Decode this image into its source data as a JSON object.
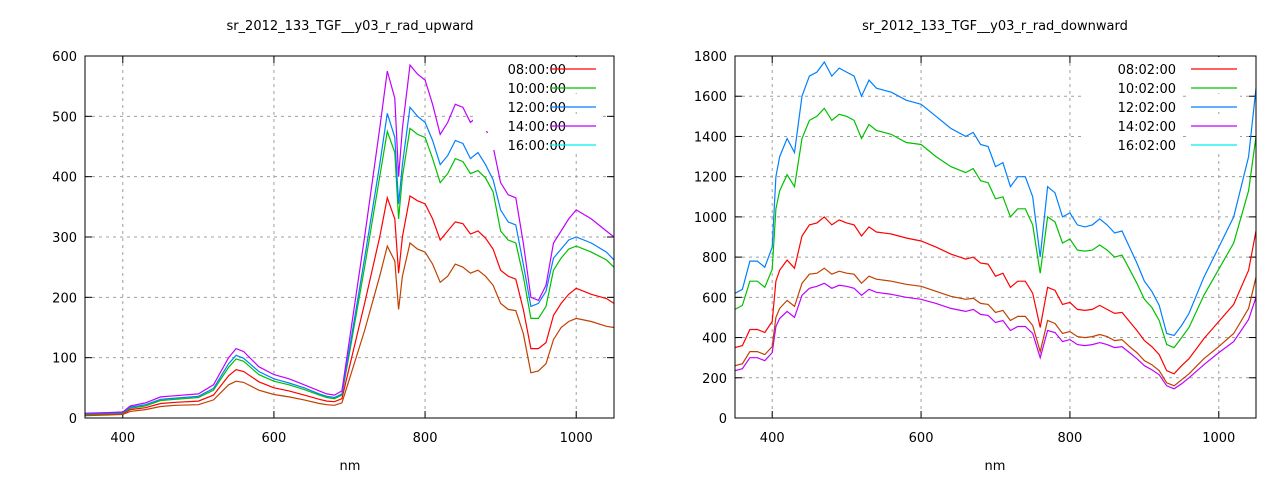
{
  "chart_data": [
    {
      "type": "line",
      "title": "sr_2012_133_TGF__y03_r_rad_upward",
      "xlabel": "nm",
      "ylabel": "",
      "xlim": [
        350,
        1050
      ],
      "ylim": [
        0,
        600
      ],
      "xticks": [
        400,
        600,
        800,
        1000
      ],
      "yticks": [
        0,
        100,
        200,
        300,
        400,
        500,
        600
      ],
      "grid": true,
      "legend_position": "top-right",
      "x": [
        350,
        380,
        400,
        410,
        430,
        450,
        470,
        500,
        520,
        540,
        550,
        560,
        580,
        600,
        620,
        640,
        660,
        670,
        680,
        690,
        700,
        720,
        740,
        750,
        760,
        765,
        770,
        780,
        790,
        800,
        810,
        820,
        830,
        840,
        850,
        860,
        870,
        880,
        890,
        900,
        910,
        920,
        930,
        940,
        950,
        960,
        970,
        980,
        990,
        1000,
        1020,
        1040,
        1050
      ],
      "series": [
        {
          "name": "08:00:00",
          "color": "#ff0000",
          "legend_color": "#ff0000",
          "values": [
            5,
            6,
            7,
            14,
            17,
            24,
            26,
            28,
            38,
            70,
            80,
            77,
            60,
            50,
            45,
            38,
            31,
            28,
            27,
            32,
            85,
            190,
            300,
            365,
            330,
            240,
            300,
            368,
            360,
            355,
            330,
            295,
            310,
            325,
            322,
            305,
            310,
            298,
            280,
            245,
            235,
            230,
            180,
            115,
            115,
            125,
            170,
            190,
            205,
            215,
            205,
            198,
            190
          ]
        },
        {
          "name": "10:00:00",
          "color": "#00c000",
          "legend_color": "#00c000",
          "values": [
            6,
            7,
            8,
            16,
            20,
            29,
            31,
            34,
            46,
            84,
            98,
            94,
            72,
            61,
            55,
            47,
            38,
            34,
            32,
            38,
            108,
            250,
            400,
            475,
            440,
            330,
            400,
            480,
            470,
            465,
            430,
            390,
            405,
            430,
            425,
            405,
            410,
            398,
            375,
            310,
            295,
            290,
            235,
            165,
            165,
            185,
            245,
            265,
            280,
            285,
            275,
            262,
            250
          ]
        },
        {
          "name": "12:00:00",
          "color": "#0080ff",
          "legend_color": "#0080ff",
          "values": [
            7,
            8,
            9,
            18,
            22,
            31,
            33,
            36,
            49,
            90,
            104,
            99,
            77,
            65,
            58,
            50,
            40,
            36,
            34,
            40,
            115,
            265,
            420,
            505,
            465,
            355,
            420,
            515,
            500,
            490,
            460,
            420,
            435,
            460,
            455,
            430,
            440,
            420,
            395,
            345,
            325,
            320,
            255,
            185,
            190,
            210,
            265,
            280,
            295,
            300,
            290,
            275,
            262
          ]
        },
        {
          "name": "14:00:00",
          "color": "#c000ff",
          "legend_color": "#c000ff",
          "values": [
            8,
            9,
            10,
            20,
            25,
            35,
            37,
            40,
            55,
            100,
            115,
            110,
            85,
            72,
            65,
            55,
            45,
            40,
            38,
            45,
            130,
            300,
            480,
            575,
            530,
            400,
            480,
            585,
            570,
            560,
            520,
            470,
            490,
            520,
            515,
            490,
            500,
            480,
            450,
            390,
            370,
            365,
            290,
            200,
            195,
            220,
            290,
            310,
            330,
            345,
            330,
            310,
            300
          ]
        },
        {
          "name": "16:00:00",
          "color": "#c04000",
          "legend_color": "#00eeee",
          "values": [
            4,
            5,
            6,
            11,
            14,
            19,
            21,
            22,
            30,
            55,
            61,
            59,
            46,
            39,
            35,
            30,
            24,
            22,
            21,
            25,
            65,
            145,
            235,
            285,
            260,
            180,
            235,
            290,
            280,
            275,
            255,
            225,
            235,
            255,
            250,
            240,
            245,
            235,
            220,
            190,
            180,
            178,
            140,
            75,
            78,
            90,
            130,
            150,
            160,
            165,
            160,
            152,
            150
          ]
        }
      ]
    },
    {
      "type": "line",
      "title": "sr_2012_133_TGF__y03_r_rad_downward",
      "xlabel": "nm",
      "ylabel": "",
      "xlim": [
        350,
        1050
      ],
      "ylim": [
        0,
        1800
      ],
      "xticks": [
        400,
        600,
        800,
        1000
      ],
      "yticks": [
        0,
        200,
        400,
        600,
        800,
        1000,
        1200,
        1400,
        1600,
        1800
      ],
      "grid": true,
      "legend_position": "top-right",
      "x": [
        350,
        360,
        370,
        380,
        390,
        400,
        405,
        410,
        420,
        430,
        440,
        450,
        460,
        470,
        480,
        490,
        500,
        510,
        520,
        530,
        540,
        560,
        580,
        600,
        620,
        640,
        660,
        670,
        680,
        690,
        700,
        710,
        720,
        730,
        740,
        750,
        760,
        770,
        780,
        790,
        800,
        810,
        820,
        830,
        840,
        850,
        860,
        870,
        880,
        890,
        900,
        910,
        920,
        930,
        940,
        950,
        960,
        980,
        1000,
        1020,
        1040,
        1050
      ],
      "series": [
        {
          "name": "08:02:00",
          "color": "#ff0000",
          "legend_color": "#ff0000",
          "values": [
            350,
            360,
            440,
            440,
            425,
            480,
            680,
            735,
            785,
            745,
            905,
            960,
            970,
            1000,
            960,
            985,
            970,
            960,
            905,
            950,
            925,
            915,
            895,
            880,
            850,
            815,
            790,
            800,
            770,
            765,
            705,
            720,
            650,
            680,
            680,
            620,
            450,
            650,
            635,
            565,
            575,
            540,
            535,
            540,
            560,
            540,
            520,
            525,
            480,
            435,
            385,
            355,
            315,
            235,
            220,
            260,
            295,
            395,
            480,
            565,
            735,
            930
          ]
        },
        {
          "name": "10:02:00",
          "color": "#00c000",
          "legend_color": "#00c000",
          "values": [
            540,
            560,
            680,
            680,
            650,
            740,
            1040,
            1130,
            1210,
            1150,
            1390,
            1480,
            1500,
            1540,
            1480,
            1510,
            1500,
            1480,
            1390,
            1460,
            1430,
            1410,
            1370,
            1360,
            1300,
            1250,
            1220,
            1240,
            1180,
            1170,
            1090,
            1100,
            1000,
            1040,
            1040,
            960,
            720,
            1000,
            975,
            870,
            890,
            835,
            830,
            835,
            860,
            835,
            800,
            810,
            740,
            670,
            590,
            550,
            485,
            365,
            350,
            400,
            450,
            610,
            740,
            870,
            1130,
            1400
          ]
        },
        {
          "name": "12:02:00",
          "color": "#0080ff",
          "legend_color": "#0080ff",
          "values": [
            620,
            640,
            780,
            780,
            750,
            850,
            1200,
            1300,
            1390,
            1320,
            1600,
            1700,
            1720,
            1770,
            1700,
            1740,
            1720,
            1700,
            1600,
            1680,
            1640,
            1620,
            1580,
            1560,
            1500,
            1440,
            1400,
            1420,
            1360,
            1350,
            1250,
            1270,
            1150,
            1200,
            1200,
            1100,
            800,
            1150,
            1120,
            1000,
            1020,
            960,
            950,
            960,
            990,
            960,
            920,
            930,
            850,
            770,
            680,
            630,
            560,
            420,
            410,
            460,
            520,
            700,
            850,
            1000,
            1300,
            1640
          ]
        },
        {
          "name": "14:02:00",
          "color": "#c000ff",
          "legend_color": "#c000ff",
          "values": [
            235,
            245,
            300,
            300,
            285,
            325,
            455,
            495,
            530,
            500,
            610,
            645,
            655,
            670,
            645,
            660,
            655,
            645,
            610,
            640,
            625,
            615,
            600,
            590,
            570,
            545,
            530,
            540,
            515,
            510,
            475,
            485,
            435,
            455,
            455,
            420,
            300,
            435,
            425,
            380,
            390,
            365,
            360,
            365,
            375,
            365,
            350,
            355,
            325,
            295,
            260,
            240,
            215,
            160,
            145,
            170,
            200,
            265,
            325,
            380,
            490,
            600
          ]
        },
        {
          "name": "16:02:00",
          "color": "#c04000",
          "legend_color": "#00eeee",
          "values": [
            260,
            270,
            330,
            330,
            315,
            355,
            500,
            545,
            585,
            555,
            670,
            715,
            720,
            745,
            715,
            730,
            720,
            715,
            670,
            705,
            690,
            680,
            665,
            655,
            630,
            605,
            590,
            595,
            570,
            565,
            525,
            535,
            485,
            505,
            505,
            460,
            330,
            485,
            470,
            420,
            430,
            405,
            400,
            405,
            415,
            405,
            385,
            390,
            355,
            325,
            285,
            265,
            235,
            175,
            160,
            190,
            220,
            295,
            355,
            420,
            545,
            700
          ]
        }
      ]
    }
  ]
}
